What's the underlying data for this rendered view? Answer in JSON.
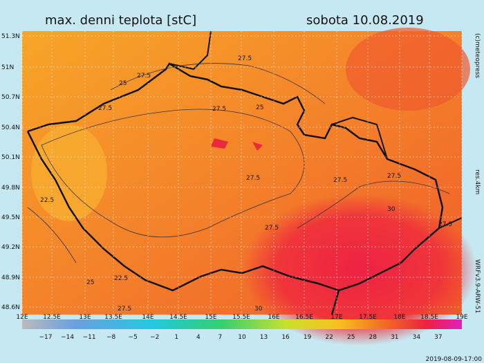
{
  "header": {
    "title": "max. denni teplota [stC]",
    "date": "sobota 10.08.2019"
  },
  "map": {
    "lat_labels": [
      "51.3N",
      "51N",
      "50.7N",
      "50.4N",
      "50.1N",
      "49.8N",
      "49.5N",
      "49.2N",
      "48.9N",
      "48.6N"
    ],
    "lon_labels": [
      "12E",
      "12.5E",
      "13E",
      "13.5E",
      "14E",
      "14.5E",
      "15E",
      "15.5E",
      "16E",
      "16.5E",
      "17E",
      "17.5E",
      "18E",
      "18.5E",
      "19E"
    ],
    "contour_labels": [
      "27.5",
      "27.5",
      "25",
      "27.5",
      "25",
      "27.5",
      "27.5",
      "27.5",
      "27.5",
      "22.5",
      "30",
      "27.5",
      "27.5",
      "22.5",
      "25",
      "30",
      "27.5"
    ]
  },
  "colorbar": {
    "labels": [
      "−17",
      "−14",
      "−11",
      "−8",
      "−5",
      "−2",
      "1",
      "4",
      "7",
      "10",
      "13",
      "16",
      "19",
      "22",
      "25",
      "28",
      "31",
      "34",
      "37"
    ]
  },
  "side": {
    "copyright": "(c)meteopress",
    "resolution": "res.4km",
    "model": "WRFv3.9-ARW-51"
  },
  "footer": {
    "timestamp": "2019-08-09-17:00"
  }
}
